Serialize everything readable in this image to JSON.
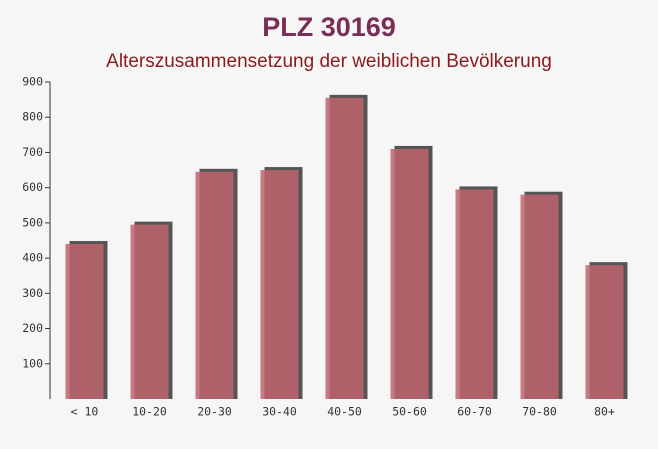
{
  "chart_data": {
    "type": "bar",
    "title": "PLZ 30169",
    "subtitle": "Alterszusammensetzung der weiblichen Bevölkerung",
    "categories": [
      "< 10",
      "10-20",
      "20-30",
      "30-40",
      "40-50",
      "50-60",
      "60-70",
      "70-80",
      "80+"
    ],
    "values": [
      440,
      495,
      645,
      650,
      855,
      710,
      595,
      580,
      380
    ],
    "color": "#c0646e",
    "ylim": [
      0,
      900
    ],
    "yticks": [
      100,
      200,
      300,
      400,
      500,
      600,
      700,
      800,
      900
    ],
    "grid": false
  }
}
